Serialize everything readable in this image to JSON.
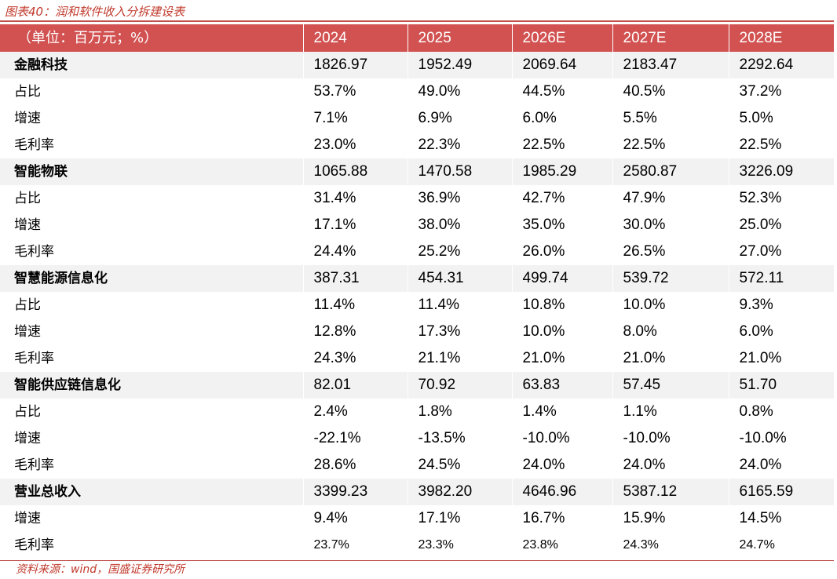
{
  "caption": "图表40：润和软件收入分拆建设表",
  "header": [
    "（单位：百万元；%）",
    "2024",
    "2025",
    "2026E",
    "2027E",
    "2028E"
  ],
  "rows": [
    {
      "label": "金融科技",
      "values": [
        "1826.97",
        "1952.49",
        "2069.64",
        "2183.47",
        "2292.64"
      ],
      "segment": true
    },
    {
      "label": "占比",
      "values": [
        "53.7%",
        "49.0%",
        "44.5%",
        "40.5%",
        "37.2%"
      ]
    },
    {
      "label": "增速",
      "values": [
        "7.1%",
        "6.9%",
        "6.0%",
        "5.5%",
        "5.0%"
      ]
    },
    {
      "label": "毛利率",
      "values": [
        "23.0%",
        "22.3%",
        "22.5%",
        "22.5%",
        "22.5%"
      ]
    },
    {
      "label": "智能物联",
      "values": [
        "1065.88",
        "1470.58",
        "1985.29",
        "2580.87",
        "3226.09"
      ],
      "segment": true
    },
    {
      "label": "占比",
      "values": [
        "31.4%",
        "36.9%",
        "42.7%",
        "47.9%",
        "52.3%"
      ]
    },
    {
      "label": "增速",
      "values": [
        "17.1%",
        "38.0%",
        "35.0%",
        "30.0%",
        "25.0%"
      ]
    },
    {
      "label": "毛利率",
      "values": [
        "24.4%",
        "25.2%",
        "26.0%",
        "26.5%",
        "27.0%"
      ]
    },
    {
      "label": "智慧能源信息化",
      "values": [
        "387.31",
        "454.31",
        "499.74",
        "539.72",
        "572.11"
      ],
      "segment": true
    },
    {
      "label": "占比",
      "values": [
        "11.4%",
        "11.4%",
        "10.8%",
        "10.0%",
        "9.3%"
      ]
    },
    {
      "label": "增速",
      "values": [
        "12.8%",
        "17.3%",
        "10.0%",
        "8.0%",
        "6.0%"
      ]
    },
    {
      "label": "毛利率",
      "values": [
        "24.3%",
        "21.1%",
        "21.0%",
        "21.0%",
        "21.0%"
      ]
    },
    {
      "label": "智能供应链信息化",
      "values": [
        "82.01",
        "70.92",
        "63.83",
        "57.45",
        "51.70"
      ],
      "segment": true
    },
    {
      "label": "占比",
      "values": [
        "2.4%",
        "1.8%",
        "1.4%",
        "1.1%",
        "0.8%"
      ]
    },
    {
      "label": "增速",
      "values": [
        "-22.1%",
        "-13.5%",
        "-10.0%",
        "-10.0%",
        "-10.0%"
      ]
    },
    {
      "label": "毛利率",
      "values": [
        "28.6%",
        "24.5%",
        "24.0%",
        "24.0%",
        "24.0%"
      ]
    },
    {
      "label": "营业总收入",
      "values": [
        "3399.23",
        "3982.20",
        "4646.96",
        "5387.12",
        "6165.59"
      ],
      "segment": true
    },
    {
      "label": "增速",
      "values": [
        "9.4%",
        "17.1%",
        "16.7%",
        "15.9%",
        "14.5%"
      ]
    },
    {
      "label": "毛利率",
      "values": [
        "23.7%",
        "23.3%",
        "23.8%",
        "24.3%",
        "24.7%"
      ]
    }
  ],
  "source": "资料来源：wind，国盛证券研究所",
  "colors": {
    "accent": "#d25252",
    "caption": "#c0392b",
    "segment_bg": "#f2f2f2"
  }
}
